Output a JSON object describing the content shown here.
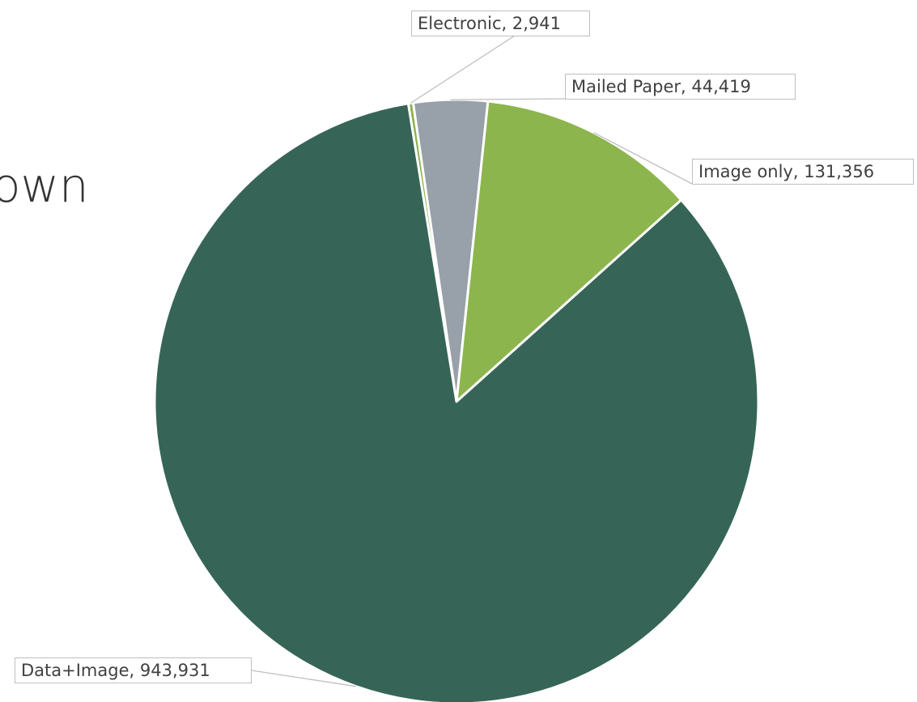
{
  "slide": {
    "title_fragment": "own"
  },
  "chart_data": {
    "type": "pie",
    "title": "",
    "legend": "none",
    "start_angle_deg": -9.2,
    "slices": [
      {
        "name": "Electronic",
        "value": 2941,
        "label": "Electronic, 2,941",
        "color": "#8db04e"
      },
      {
        "name": "Mailed Paper",
        "value": 44419,
        "label": "Mailed Paper, 44,419",
        "color": "#98a0a9"
      },
      {
        "name": "Image only",
        "value": 131356,
        "label": "Image only, 131,356",
        "color": "#8db54d"
      },
      {
        "name": "Data+Image",
        "value": 943931,
        "label": "Data+Image, 943,931",
        "color": "#366557"
      }
    ]
  }
}
